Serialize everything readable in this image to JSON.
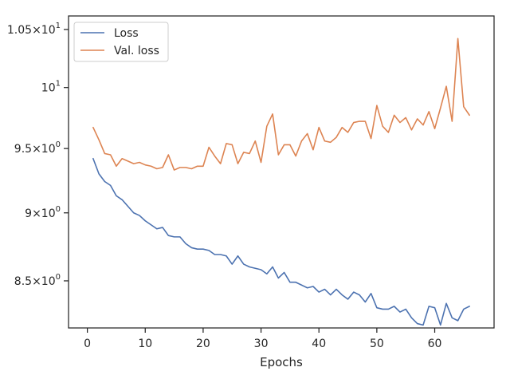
{
  "chart_data": {
    "type": "line",
    "title": "",
    "xlabel": "Epochs",
    "ylabel": "",
    "yscale": "log",
    "grid": false,
    "legend_position": "top-left",
    "xlim": [
      -3.25,
      70.25
    ],
    "ylim": [
      8.17,
      10.62
    ],
    "x_ticks": [
      0,
      10,
      20,
      30,
      40,
      50,
      60
    ],
    "x_tick_labels": [
      "0",
      "10",
      "20",
      "30",
      "40",
      "50",
      "60"
    ],
    "y_ticks": [
      {
        "value": 8.5,
        "mantissa": "8.5",
        "times": "×",
        "base": "10",
        "exp": "0"
      },
      {
        "value": 9.0,
        "mantissa": "9",
        "times": "×",
        "base": "10",
        "exp": "0"
      },
      {
        "value": 9.5,
        "mantissa": "9.5",
        "times": "×",
        "base": "10",
        "exp": "0"
      },
      {
        "value": 10.0,
        "mantissa": "",
        "times": "",
        "base": "10",
        "exp": "1"
      },
      {
        "value": 10.5,
        "mantissa": "1.05",
        "times": "×",
        "base": "10",
        "exp": "1"
      }
    ],
    "x": [
      1,
      2,
      3,
      4,
      5,
      6,
      7,
      8,
      9,
      10,
      11,
      12,
      13,
      14,
      15,
      16,
      17,
      18,
      19,
      20,
      21,
      22,
      23,
      24,
      25,
      26,
      27,
      28,
      29,
      30,
      31,
      32,
      33,
      34,
      35,
      36,
      37,
      38,
      39,
      40,
      41,
      42,
      43,
      44,
      45,
      46,
      47,
      48,
      49,
      50,
      51,
      52,
      53,
      54,
      55,
      56,
      57,
      58,
      59,
      60,
      61,
      62,
      63,
      64,
      65,
      66
    ],
    "series": [
      {
        "name": "Loss",
        "color": "#4c72b0",
        "values": [
          9.42,
          9.3,
          9.24,
          9.21,
          9.13,
          9.1,
          9.05,
          9.0,
          8.98,
          8.94,
          8.91,
          8.88,
          8.89,
          8.83,
          8.82,
          8.82,
          8.77,
          8.74,
          8.73,
          8.73,
          8.72,
          8.69,
          8.69,
          8.68,
          8.62,
          8.68,
          8.62,
          8.6,
          8.59,
          8.58,
          8.55,
          8.6,
          8.52,
          8.56,
          8.49,
          8.49,
          8.47,
          8.45,
          8.46,
          8.42,
          8.44,
          8.4,
          8.44,
          8.4,
          8.37,
          8.42,
          8.4,
          8.35,
          8.41,
          8.31,
          8.3,
          8.3,
          8.32,
          8.28,
          8.3,
          8.24,
          8.2,
          8.19,
          8.32,
          8.31,
          8.19,
          8.34,
          8.24,
          8.22,
          8.3,
          8.32
        ]
      },
      {
        "name": "Val. loss",
        "color": "#dd8452",
        "values": [
          9.67,
          9.57,
          9.46,
          9.45,
          9.36,
          9.42,
          9.4,
          9.38,
          9.39,
          9.37,
          9.36,
          9.34,
          9.35,
          9.45,
          9.33,
          9.35,
          9.35,
          9.34,
          9.36,
          9.36,
          9.51,
          9.44,
          9.38,
          9.54,
          9.53,
          9.38,
          9.47,
          9.46,
          9.56,
          9.39,
          9.68,
          9.78,
          9.45,
          9.53,
          9.53,
          9.44,
          9.56,
          9.62,
          9.49,
          9.67,
          9.56,
          9.55,
          9.59,
          9.67,
          9.63,
          9.71,
          9.72,
          9.72,
          9.58,
          9.85,
          9.68,
          9.63,
          9.77,
          9.71,
          9.75,
          9.65,
          9.74,
          9.69,
          9.8,
          9.66,
          9.83,
          10.01,
          9.72,
          10.42,
          9.84,
          9.77
        ]
      }
    ]
  }
}
